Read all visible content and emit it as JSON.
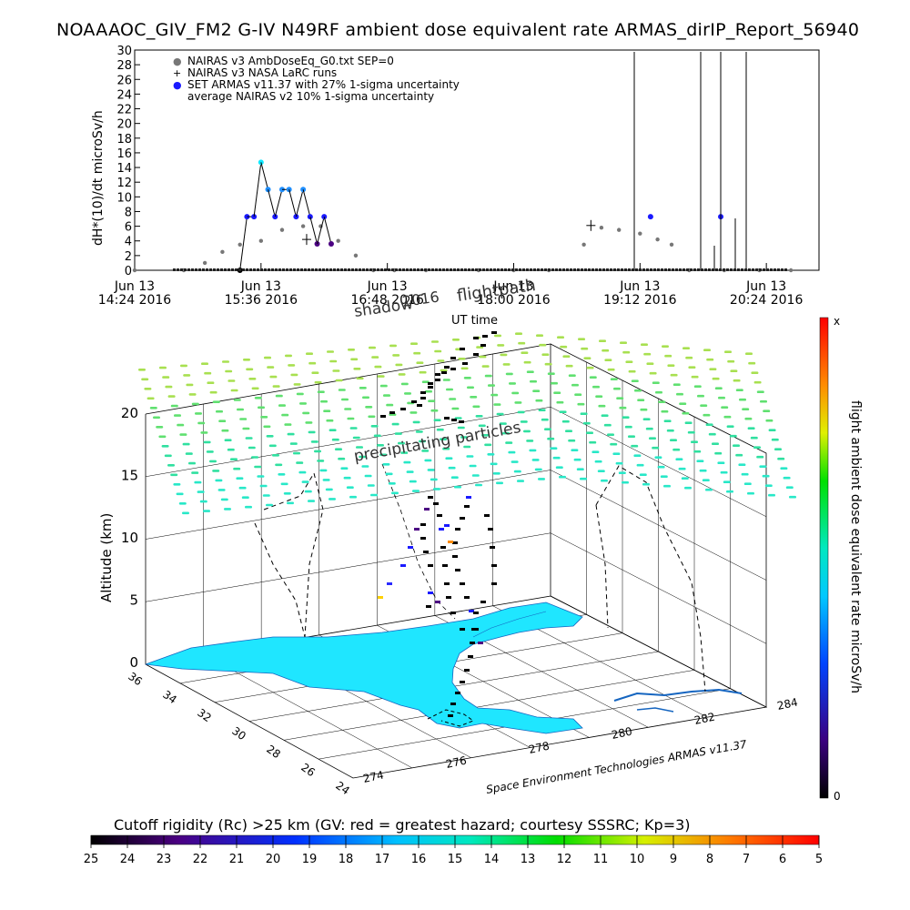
{
  "title": "NOAAAOC_GIV_FM2 G-IV   N49RF  ambient dose equivalent rate ARMAS_dirIP_Report_56940",
  "top_panel": {
    "ylabel": "dH*(10)/dt microSv/h",
    "y_ticks": [
      "0",
      "2",
      "4",
      "6",
      "8",
      "10",
      "12",
      "14",
      "16",
      "18",
      "20",
      "22",
      "24",
      "26",
      "28",
      "30"
    ],
    "x_ticks": [
      {
        "line1": "Jun 13",
        "line2": "14:24 2016"
      },
      {
        "line1": "Jun 13",
        "line2": "15:36 2016"
      },
      {
        "line1": "Jun 13",
        "line2": "16:48 2016"
      },
      {
        "line1": "Jun 13",
        "line2": "18:00 2016"
      },
      {
        "line1": "Jun 13",
        "line2": "19:12 2016"
      },
      {
        "line1": "Jun 13",
        "line2": "20:24 2016"
      }
    ],
    "xlabel": "UT time",
    "legend": [
      {
        "symbol": "●",
        "label": "NAIRAS v3 AmbDoseEq_G0.txt SEP=0",
        "color": "#777777"
      },
      {
        "symbol": "+",
        "label": "NAIRAS v3 NASA LaRC runs",
        "color": "#000000"
      },
      {
        "symbol": "●",
        "label": "SET ARMAS v11.37 with 27% 1-sigma uncertainty",
        "color": "#1a1aff"
      },
      {
        "symbol": "",
        "label": "average NAIRAS v2 10% 1-sigma uncertainty",
        "color": "#000000"
      }
    ]
  },
  "scene": {
    "overlay_labels": [
      "shadow",
      "2016",
      "flightpath"
    ],
    "precip_label": "precipitating particles",
    "altitude_label": "Altitude (km)",
    "altitude_ticks": [
      "0",
      "5",
      "10",
      "15",
      "20"
    ],
    "lat_ticks": [
      "36",
      "34",
      "32",
      "30",
      "28",
      "26",
      "24"
    ],
    "lon_ticks": [
      "274",
      "276",
      "278",
      "280",
      "282",
      "284"
    ],
    "credit": "Space Environment Technologies ARMAS v11.37"
  },
  "right_colorbar": {
    "label": "flight ambient dose equivalent rate microSv/h",
    "top": "x",
    "bottom": "0"
  },
  "bottom_colorbar": {
    "title": "Cutoff rigidity (Rc) >25 km (GV: red = greatest hazard; courtesy SSSRC; Kp=3)",
    "ticks": [
      "25",
      "24",
      "23",
      "22",
      "21",
      "20",
      "19",
      "18",
      "17",
      "16",
      "15",
      "14",
      "13",
      "12",
      "11",
      "10",
      "9",
      "8",
      "7",
      "6",
      "5"
    ]
  },
  "chart_data": {
    "type": "scatter",
    "title": "NOAAAOC_GIV_FM2 G-IV   N49RF  ambient dose equivalent rate ARMAS_dirIP_Report_56940",
    "xlabel": "UT time",
    "ylabel": "dH*(10)/dt microSv/h",
    "ylim": [
      0,
      30
    ],
    "xlim": [
      "2016-06-13 14:24",
      "2016-06-13 20:54"
    ],
    "grid": false,
    "legend_position": "top-left",
    "series": [
      {
        "name": "NAIRAS v3 AmbDoseEq_G0.txt SEP=0",
        "x": [
          "14:24",
          "14:52",
          "15:04",
          "15:14",
          "15:24",
          "15:36",
          "15:48",
          "16:00",
          "16:10",
          "16:20",
          "16:30",
          "16:40",
          "16:52",
          "17:10",
          "17:40",
          "18:00",
          "18:20",
          "18:40",
          "18:50",
          "19:00",
          "19:12",
          "19:22",
          "19:30",
          "19:40",
          "20:00",
          "20:20",
          "20:38"
        ],
        "y": [
          0,
          0,
          1,
          2.5,
          3.5,
          4,
          5.5,
          6,
          6,
          4,
          2,
          0,
          0,
          0,
          0,
          0,
          0,
          3.5,
          5.8,
          5.5,
          5,
          4.2,
          3.5,
          0,
          0,
          0,
          0
        ]
      },
      {
        "name": "NAIRAS v3 NASA LaRC runs",
        "x": [
          "16:02",
          "18:44"
        ],
        "y": [
          4.2,
          6.1
        ]
      },
      {
        "name": "SET ARMAS v11.37 with 27% 1-sigma uncertainty",
        "x": [
          "15:24",
          "15:28",
          "15:32",
          "15:36",
          "15:40",
          "15:44",
          "15:48",
          "15:52",
          "15:56",
          "16:00",
          "16:04",
          "16:08",
          "16:12",
          "16:16",
          "19:18",
          "19:58"
        ],
        "y": [
          0,
          7.3,
          7.3,
          14.7,
          11,
          7.3,
          11,
          11,
          7.3,
          11,
          7.3,
          3.6,
          7.3,
          3.6,
          7.3,
          7.3
        ]
      }
    ]
  }
}
